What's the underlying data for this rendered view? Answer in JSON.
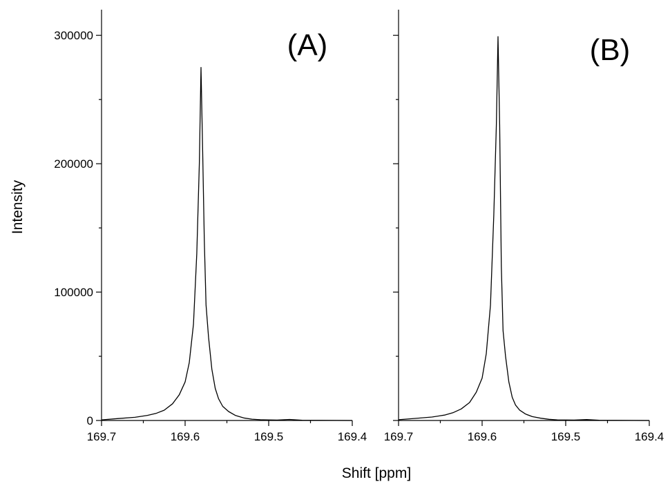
{
  "chart_data": {
    "type": "line",
    "ylabel": "Intensity",
    "xlabel": "Shift [ppm]",
    "x_reversed": true,
    "xlim": [
      169.7,
      169.4
    ],
    "ylim": [
      0,
      320000
    ],
    "grid": false,
    "x_ticks": [
      169.7,
      169.6,
      169.5,
      169.4
    ],
    "x_tick_labels": [
      "169.7",
      "169.6",
      "169.5",
      "169.4"
    ],
    "y_ticks": [
      0,
      100000,
      200000,
      300000
    ],
    "y_tick_labels": [
      "0",
      "100000",
      "200000",
      "300000"
    ],
    "panels": [
      {
        "label": "(A)",
        "series": [
          {
            "x": [
              169.7,
              169.68,
              169.66,
              169.645,
              169.635,
              169.625,
              169.615,
              169.607,
              169.6,
              169.595,
              169.59,
              169.586,
              169.583,
              169.581,
              169.579,
              169.577,
              169.575,
              169.572,
              169.568,
              169.564,
              169.56,
              169.555,
              169.548,
              169.54,
              169.53,
              169.52,
              169.51,
              169.49,
              169.475,
              169.46,
              169.44,
              169.42,
              169.4
            ],
            "y": [
              500,
              1500,
              2500,
              4000,
              5500,
              8000,
              13000,
              20000,
              30000,
              45000,
              75000,
              130000,
              200000,
              275000,
              210000,
              140000,
              90000,
              65000,
              40000,
              25000,
              17000,
              11000,
              7000,
              4000,
              2000,
              1000,
              600,
              300,
              800,
              200,
              100,
              50,
              0
            ]
          }
        ]
      },
      {
        "label": "(B)",
        "series": [
          {
            "x": [
              169.7,
              169.68,
              169.66,
              169.645,
              169.635,
              169.625,
              169.615,
              169.607,
              169.6,
              169.595,
              169.59,
              169.586,
              169.583,
              169.581,
              169.579,
              169.577,
              169.575,
              169.572,
              169.568,
              169.564,
              169.56,
              169.555,
              169.548,
              169.54,
              169.53,
              169.52,
              169.51,
              169.49,
              169.475,
              169.46,
              169.44,
              169.42,
              169.4
            ],
            "y": [
              600,
              1600,
              2700,
              4200,
              6000,
              9000,
              14000,
              22000,
              33000,
              52000,
              90000,
              160000,
              230000,
              299000,
              230000,
              120000,
              70000,
              50000,
              30000,
              18000,
              12000,
              8000,
              5000,
              3000,
              1800,
              900,
              500,
              300,
              700,
              200,
              100,
              50,
              0
            ]
          }
        ]
      }
    ]
  }
}
